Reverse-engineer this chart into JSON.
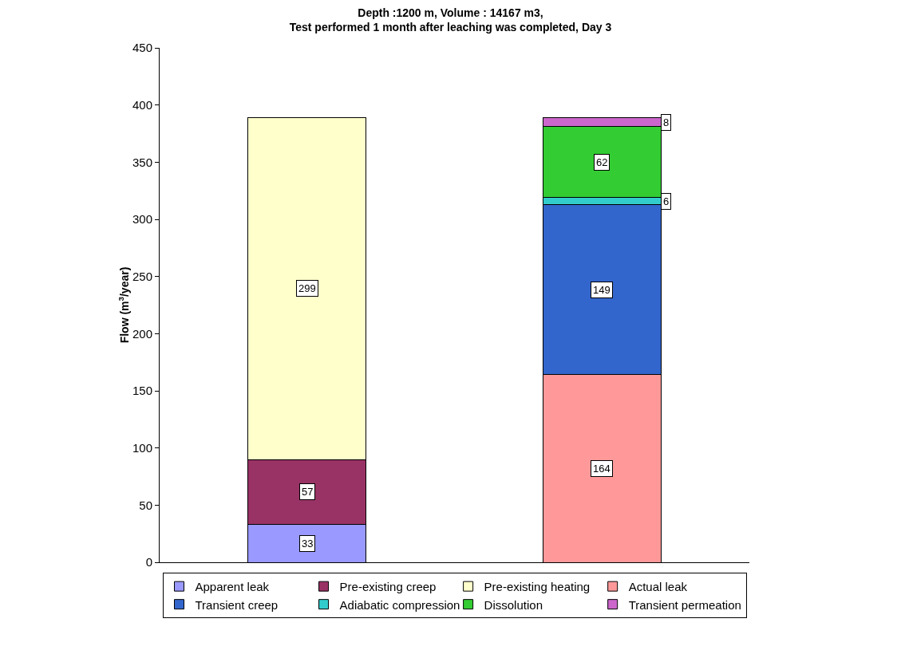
{
  "chart_data": {
    "type": "bar",
    "title": "Depth :1200 m, Volume : 14167 m3,\nTest performed 1 month after leaching was completed, Day 3",
    "ylabel": "Flow (m$^{3}$/year)",
    "categories": [
      null,
      null
    ],
    "stacked": true,
    "series": [
      {
        "name": "Apparent leak",
        "color": "#9999ff",
        "values": [
          33,
          null
        ]
      },
      {
        "name": "Pre-existing creep",
        "color": "#993366",
        "values": [
          57,
          null
        ]
      },
      {
        "name": "Pre-existing heating",
        "color": "#ffffcc",
        "values": [
          299,
          null
        ]
      },
      {
        "name": "Actual leak",
        "color": "#ff9999",
        "values": [
          null,
          164
        ]
      },
      {
        "name": "Transient creep",
        "color": "#3366cc",
        "values": [
          null,
          149
        ]
      },
      {
        "name": "Adiabatic compression",
        "color": "#33cccc",
        "values": [
          null,
          6
        ]
      },
      {
        "name": "Dissolution",
        "color": "#33cc33",
        "values": [
          null,
          62
        ]
      },
      {
        "name": "Transient permeation",
        "color": "#cc66cc",
        "values": [
          null,
          8
        ]
      }
    ],
    "ylim": [
      0,
      450
    ],
    "yticks": [
      0,
      50,
      100,
      150,
      200,
      250,
      300,
      350,
      400,
      450
    ],
    "grid": false,
    "legend": "bottom",
    "data_labels": true
  }
}
